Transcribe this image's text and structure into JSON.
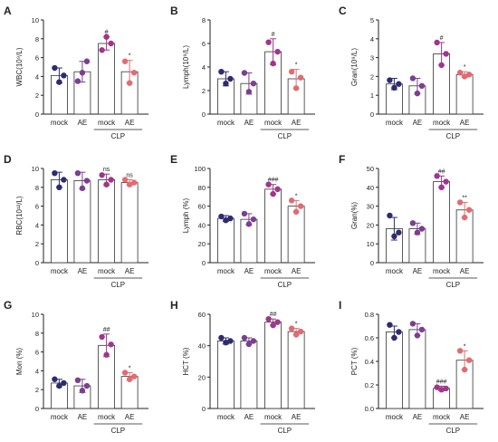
{
  "groups": [
    "mock",
    "AE",
    "mock",
    "AE"
  ],
  "group_label": "CLP",
  "colors": [
    "#2e2b6e",
    "#7b3f8f",
    "#a0368c",
    "#e06c72"
  ],
  "chart_data": [
    {
      "type": "bar",
      "panel_label": "A",
      "ylabel": "WBC(10⁹/L)",
      "ylim": [
        0,
        10
      ],
      "yticks": [
        0,
        2,
        4,
        6,
        8,
        10
      ],
      "categories": [
        "mock",
        "AE",
        "mock",
        "AE"
      ],
      "values": [
        4.1,
        4.5,
        7.5,
        4.5
      ],
      "errors": [
        0.8,
        1.1,
        0.7,
        1.2
      ],
      "points": [
        [
          4.9,
          3.4,
          4.1
        ],
        [
          3.5,
          4.4,
          5.6
        ],
        [
          6.8,
          8.2,
          7.5
        ],
        [
          5.6,
          3.3,
          4.4
        ]
      ],
      "annotations": [
        "",
        "",
        "#",
        "*"
      ],
      "grid": false
    },
    {
      "type": "bar",
      "panel_label": "B",
      "ylabel": "Lymph(10⁹/L)",
      "ylim": [
        0,
        8
      ],
      "yticks": [
        0,
        2,
        4,
        6,
        8
      ],
      "categories": [
        "mock",
        "AE",
        "mock",
        "AE"
      ],
      "values": [
        3.0,
        2.6,
        5.3,
        3.0
      ],
      "errors": [
        0.6,
        0.9,
        1.1,
        0.8
      ],
      "points": [
        [
          3.6,
          2.6,
          3.0
        ],
        [
          3.5,
          1.9,
          2.6
        ],
        [
          6.1,
          4.3,
          5.3
        ],
        [
          3.6,
          2.2,
          3.1
        ]
      ],
      "annotations": [
        "",
        "",
        "#",
        "*"
      ],
      "grid": false
    },
    {
      "type": "bar",
      "panel_label": "C",
      "ylabel": "Gran(10⁹/L)",
      "ylim": [
        0,
        5
      ],
      "yticks": [
        0,
        1,
        2,
        3,
        4,
        5
      ],
      "categories": [
        "mock",
        "AE",
        "mock",
        "AE"
      ],
      "values": [
        1.6,
        1.5,
        3.2,
        2.1
      ],
      "errors": [
        0.3,
        0.4,
        0.6,
        0.15
      ],
      "points": [
        [
          1.8,
          1.4,
          1.6
        ],
        [
          1.9,
          1.1,
          1.5
        ],
        [
          3.8,
          2.6,
          3.2
        ],
        [
          2.2,
          2.0,
          2.1
        ]
      ],
      "annotations": [
        "",
        "",
        "#",
        "*"
      ],
      "grid": false
    },
    {
      "type": "bar",
      "panel_label": "D",
      "ylabel": "RBC(10¹²/L)",
      "ylim": [
        0,
        10
      ],
      "yticks": [
        0,
        2,
        4,
        6,
        8,
        10
      ],
      "categories": [
        "mock",
        "AE",
        "mock",
        "AE"
      ],
      "values": [
        8.8,
        8.7,
        8.8,
        8.5
      ],
      "errors": [
        0.8,
        0.9,
        0.6,
        0.3
      ],
      "points": [
        [
          9.5,
          8.0,
          8.8
        ],
        [
          9.5,
          7.9,
          8.7
        ],
        [
          9.3,
          8.3,
          8.8
        ],
        [
          8.8,
          8.3,
          8.5
        ]
      ],
      "annotations": [
        "",
        "",
        "ns",
        "ns"
      ],
      "grid": false
    },
    {
      "type": "bar",
      "panel_label": "E",
      "ylabel": "Lymph (%)",
      "ylim": [
        0,
        100
      ],
      "yticks": [
        0,
        20,
        40,
        60,
        80,
        100
      ],
      "categories": [
        "mock",
        "AE",
        "mock",
        "AE"
      ],
      "values": [
        47,
        46,
        78,
        60
      ],
      "errors": [
        3,
        6,
        5,
        6
      ],
      "points": [
        [
          49,
          45,
          47
        ],
        [
          52,
          41,
          46
        ],
        [
          83,
          73,
          78
        ],
        [
          66,
          54,
          60
        ]
      ],
      "annotations": [
        "",
        "",
        "###",
        "*"
      ],
      "grid": false
    },
    {
      "type": "bar",
      "panel_label": "F",
      "ylabel": "Gran(%)",
      "ylim": [
        0,
        50
      ],
      "yticks": [
        0,
        10,
        20,
        30,
        40,
        50
      ],
      "categories": [
        "mock",
        "AE",
        "mock",
        "AE"
      ],
      "values": [
        18,
        18,
        43,
        28
      ],
      "errors": [
        6,
        3,
        3,
        4
      ],
      "points": [
        [
          25,
          14,
          16
        ],
        [
          21,
          16,
          18
        ],
        [
          46,
          40,
          43
        ],
        [
          32,
          24,
          28
        ]
      ],
      "annotations": [
        "",
        "",
        "##",
        "**"
      ],
      "grid": false
    },
    {
      "type": "bar",
      "panel_label": "G",
      "ylabel": "Mon (%)",
      "ylim": [
        0,
        10
      ],
      "yticks": [
        0,
        2,
        4,
        6,
        8,
        10
      ],
      "categories": [
        "mock",
        "AE",
        "mock",
        "AE"
      ],
      "values": [
        2.7,
        2.4,
        6.7,
        3.4
      ],
      "errors": [
        0.4,
        0.7,
        1.2,
        0.4
      ],
      "points": [
        [
          3.1,
          2.4,
          2.7
        ],
        [
          3.0,
          1.9,
          2.4
        ],
        [
          7.6,
          5.7,
          6.8
        ],
        [
          3.8,
          3.1,
          3.4
        ]
      ],
      "annotations": [
        "",
        "",
        "##",
        "*"
      ],
      "grid": false
    },
    {
      "type": "bar",
      "panel_label": "H",
      "ylabel": "HCT (%)",
      "ylim": [
        0,
        60
      ],
      "yticks": [
        0,
        20,
        40,
        60
      ],
      "categories": [
        "mock",
        "AE",
        "mock",
        "AE"
      ],
      "values": [
        43,
        43,
        55,
        49
      ],
      "errors": [
        2,
        2,
        2,
        2
      ],
      "points": [
        [
          45,
          42,
          43
        ],
        [
          45,
          41,
          43
        ],
        [
          57,
          53,
          55
        ],
        [
          51,
          47,
          49
        ]
      ],
      "annotations": [
        "",
        "",
        "##",
        "*"
      ],
      "grid": false
    },
    {
      "type": "bar",
      "panel_label": "I",
      "ylabel": "PCT (%)",
      "ylim": [
        0,
        0.8
      ],
      "yticks": [
        0.0,
        0.2,
        0.4,
        0.6,
        0.8
      ],
      "categories": [
        "mock",
        "AE",
        "mock",
        "AE"
      ],
      "values": [
        0.65,
        0.67,
        0.17,
        0.41
      ],
      "errors": [
        0.05,
        0.05,
        0.02,
        0.08
      ],
      "points": [
        [
          0.71,
          0.6,
          0.65
        ],
        [
          0.72,
          0.62,
          0.67
        ],
        [
          0.18,
          0.16,
          0.17
        ],
        [
          0.49,
          0.33,
          0.41
        ]
      ],
      "annotations": [
        "",
        "",
        "###",
        "*"
      ],
      "grid": false
    }
  ]
}
